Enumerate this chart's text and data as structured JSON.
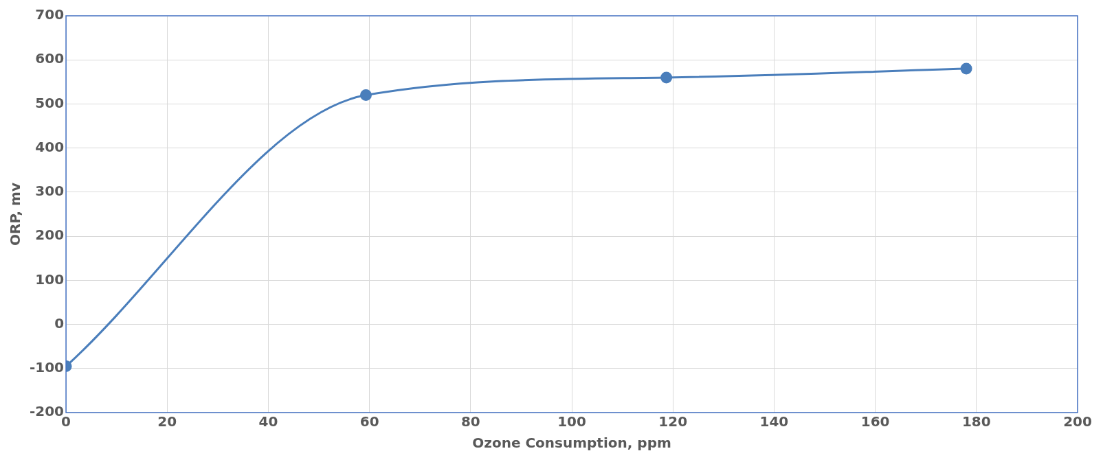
{
  "chart_data": {
    "type": "line",
    "xlabel": "Ozone Consumption, ppm",
    "ylabel": "ORP, mv",
    "x": [
      0,
      59.3,
      118.7,
      178
    ],
    "series": [
      {
        "color": "#4a7ebb",
        "values": [
          -95,
          520,
          560,
          580
        ]
      }
    ],
    "xlim": [
      0,
      200
    ],
    "xticks": [
      0,
      20,
      40,
      60,
      80,
      100,
      120,
      140,
      160,
      180,
      200
    ],
    "ylim": [
      -200,
      700
    ],
    "yticks": [
      -200,
      -100,
      0,
      100,
      200,
      300,
      400,
      500,
      600,
      700
    ],
    "grid": true,
    "marker": "circle",
    "line_style": "solid",
    "legend": false
  }
}
